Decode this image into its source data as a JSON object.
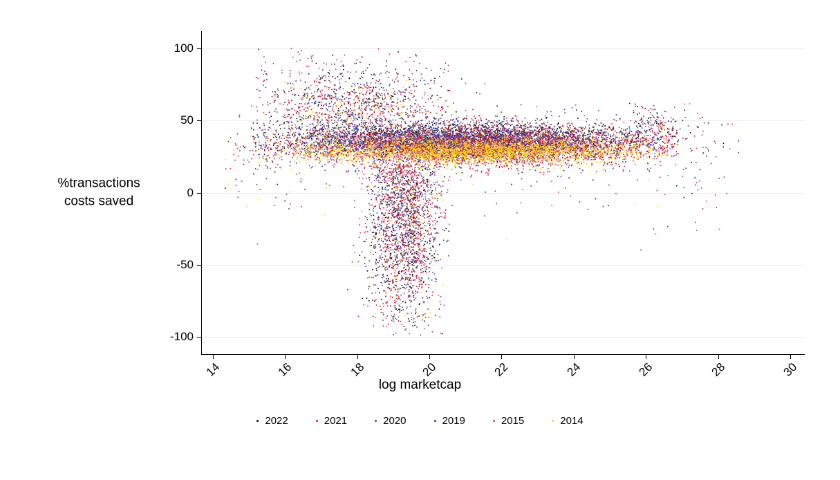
{
  "chart_data": {
    "type": "scatter",
    "title": "",
    "xlabel": "log marketcap",
    "ylabel": "%transactions\ncosts saved",
    "xlim": [
      13.7,
      30.4
    ],
    "ylim": [
      -112,
      112
    ],
    "xticks": [
      14,
      16,
      18,
      20,
      22,
      24,
      26,
      28,
      30
    ],
    "yticks": [
      -100,
      -50,
      0,
      50,
      100
    ],
    "grid": "horizontal-major",
    "grid_color": "#e9edf2",
    "axis_color": "#000000",
    "legend_position": "bottom-center",
    "point_size": 1.6,
    "seed": 1337,
    "series": [
      {
        "name": "2022",
        "color": "#101018"
      },
      {
        "name": "2021",
        "color": "#e0182d"
      },
      {
        "name": "2020",
        "color": "#90353b"
      },
      {
        "name": "2019",
        "color": "#2440c8"
      },
      {
        "name": "2015",
        "color": "#d6356e"
      },
      {
        "name": "2014",
        "color": "#ffd200"
      }
    ],
    "clusters": [
      {
        "series": "2022",
        "n": 2000,
        "x": {
          "d": "g",
          "m": 21.0,
          "s": 2.6,
          "lo": 15.1,
          "hi": 26.9
        },
        "y": {
          "d": "g",
          "m": 37,
          "s": 6,
          "lo": 12,
          "hi": 62
        }
      },
      {
        "series": "2021",
        "n": 2000,
        "x": {
          "d": "g",
          "m": 21.2,
          "s": 2.6,
          "lo": 15.1,
          "hi": 26.9
        },
        "y": {
          "d": "g",
          "m": 33,
          "s": 7,
          "lo": 5,
          "hi": 58
        }
      },
      {
        "series": "2020",
        "n": 1300,
        "x": {
          "d": "g",
          "m": 21.0,
          "s": 2.7,
          "lo": 15.1,
          "hi": 26.9
        },
        "y": {
          "d": "g",
          "m": 35,
          "s": 6,
          "lo": 10,
          "hi": 58
        }
      },
      {
        "series": "2019",
        "n": 1600,
        "x": {
          "d": "g",
          "m": 20.6,
          "s": 2.6,
          "lo": 15.1,
          "hi": 26.9
        },
        "y": {
          "d": "g",
          "m": 35,
          "s": 7,
          "lo": 8,
          "hi": 60
        }
      },
      {
        "series": "2015",
        "n": 1600,
        "x": {
          "d": "g",
          "m": 21.4,
          "s": 2.5,
          "lo": 15.1,
          "hi": 26.9
        },
        "y": {
          "d": "g",
          "m": 31,
          "s": 6,
          "lo": 5,
          "hi": 55
        }
      },
      {
        "series": "2014",
        "n": 2200,
        "x": {
          "d": "g",
          "m": 21.3,
          "s": 2.4,
          "lo": 15.2,
          "hi": 26.6
        },
        "y": {
          "d": "g",
          "m": 29,
          "s": 4.5,
          "lo": 13,
          "hi": 46
        }
      },
      {
        "series": "2022",
        "n": 550,
        "x": {
          "d": "g",
          "m": 19.3,
          "s": 0.5,
          "lo": 17.7,
          "hi": 20.6
        },
        "y": {
          "d": "g",
          "m": -15,
          "s": 38,
          "lo": -100,
          "hi": 20
        }
      },
      {
        "series": "2021",
        "n": 500,
        "x": {
          "d": "g",
          "m": 19.3,
          "s": 0.5,
          "lo": 17.7,
          "hi": 20.6
        },
        "y": {
          "d": "g",
          "m": -15,
          "s": 38,
          "lo": -100,
          "hi": 20
        }
      },
      {
        "series": "2020",
        "n": 280,
        "x": {
          "d": "g",
          "m": 19.3,
          "s": 0.5,
          "lo": 17.7,
          "hi": 20.6
        },
        "y": {
          "d": "g",
          "m": -15,
          "s": 38,
          "lo": -100,
          "hi": 20
        }
      },
      {
        "series": "2019",
        "n": 320,
        "x": {
          "d": "g",
          "m": 19.3,
          "s": 0.55,
          "lo": 17.6,
          "hi": 20.6
        },
        "y": {
          "d": "g",
          "m": -15,
          "s": 38,
          "lo": -100,
          "hi": 20
        }
      },
      {
        "series": "2015",
        "n": 320,
        "x": {
          "d": "g",
          "m": 19.3,
          "s": 0.5,
          "lo": 17.7,
          "hi": 20.6
        },
        "y": {
          "d": "g",
          "m": -15,
          "s": 38,
          "lo": -100,
          "hi": 20
        }
      },
      {
        "series": "2014",
        "n": 70,
        "x": {
          "d": "g",
          "m": 19.3,
          "s": 0.5,
          "lo": 17.8,
          "hi": 20.4
        },
        "y": {
          "d": "g",
          "m": -20,
          "s": 35,
          "lo": -98,
          "hi": 10
        }
      },
      {
        "series": "2022",
        "n": 280,
        "x": {
          "d": "g",
          "m": 17.9,
          "s": 1.4,
          "lo": 15.2,
          "hi": 22.0
        },
        "y": {
          "d": "g",
          "m": 60,
          "s": 16,
          "lo": 42,
          "hi": 100
        }
      },
      {
        "series": "2021",
        "n": 260,
        "x": {
          "d": "g",
          "m": 17.7,
          "s": 1.4,
          "lo": 15.2,
          "hi": 22.0
        },
        "y": {
          "d": "g",
          "m": 62,
          "s": 17,
          "lo": 42,
          "hi": 100
        }
      },
      {
        "series": "2020",
        "n": 140,
        "x": {
          "d": "g",
          "m": 18.0,
          "s": 1.3,
          "lo": 15.2,
          "hi": 22.0
        },
        "y": {
          "d": "g",
          "m": 58,
          "s": 14,
          "lo": 42,
          "hi": 97
        }
      },
      {
        "series": "2019",
        "n": 170,
        "x": {
          "d": "g",
          "m": 17.6,
          "s": 1.4,
          "lo": 15.2,
          "hi": 22.0
        },
        "y": {
          "d": "g",
          "m": 58,
          "s": 15,
          "lo": 42,
          "hi": 98
        }
      },
      {
        "series": "2015",
        "n": 160,
        "x": {
          "d": "g",
          "m": 18.1,
          "s": 1.4,
          "lo": 15.2,
          "hi": 22.0
        },
        "y": {
          "d": "g",
          "m": 60,
          "s": 15,
          "lo": 42,
          "hi": 98
        }
      },
      {
        "series": "2014",
        "n": 90,
        "x": {
          "d": "g",
          "m": 17.8,
          "s": 1.2,
          "lo": 15.2,
          "hi": 21.0
        },
        "y": {
          "d": "g",
          "m": 55,
          "s": 11,
          "lo": 42,
          "hi": 90
        }
      },
      {
        "series": "2022",
        "n": 70,
        "x": {
          "d": "u",
          "lo": 14.6,
          "hi": 28.3
        },
        "y": {
          "d": "g",
          "m": 25,
          "s": 22,
          "lo": -45,
          "hi": 62
        }
      },
      {
        "series": "2021",
        "n": 70,
        "x": {
          "d": "u",
          "lo": 14.6,
          "hi": 28.3
        },
        "y": {
          "d": "g",
          "m": 25,
          "s": 22,
          "lo": -45,
          "hi": 62
        }
      },
      {
        "series": "2020",
        "n": 70,
        "x": {
          "d": "u",
          "lo": 14.6,
          "hi": 28.3
        },
        "y": {
          "d": "g",
          "m": 25,
          "s": 22,
          "lo": -45,
          "hi": 62
        }
      },
      {
        "series": "2019",
        "n": 70,
        "x": {
          "d": "u",
          "lo": 14.6,
          "hi": 28.3
        },
        "y": {
          "d": "g",
          "m": 25,
          "s": 22,
          "lo": -45,
          "hi": 62
        }
      },
      {
        "series": "2015",
        "n": 70,
        "x": {
          "d": "u",
          "lo": 14.6,
          "hi": 28.3
        },
        "y": {
          "d": "g",
          "m": 25,
          "s": 22,
          "lo": -45,
          "hi": 62
        }
      },
      {
        "series": "2014",
        "n": 50,
        "x": {
          "d": "u",
          "lo": 14.4,
          "hi": 27.0
        },
        "y": {
          "d": "g",
          "m": 25,
          "s": 20,
          "lo": -40,
          "hi": 60
        }
      },
      {
        "series": "2022",
        "n": 40,
        "x": {
          "d": "g",
          "m": 26.15,
          "s": 0.35,
          "lo": 25.6,
          "hi": 26.9
        },
        "y": {
          "d": "g",
          "m": 46,
          "s": 9,
          "lo": 25,
          "hi": 62
        }
      },
      {
        "series": "2021",
        "n": 40,
        "x": {
          "d": "g",
          "m": 26.15,
          "s": 0.35,
          "lo": 25.6,
          "hi": 26.9
        },
        "y": {
          "d": "g",
          "m": 46,
          "s": 9,
          "lo": 25,
          "hi": 62
        }
      },
      {
        "series": "2019",
        "n": 25,
        "x": {
          "d": "g",
          "m": 26.15,
          "s": 0.35,
          "lo": 25.6,
          "hi": 26.9
        },
        "y": {
          "d": "g",
          "m": 46,
          "s": 9,
          "lo": 25,
          "hi": 62
        }
      },
      {
        "series": "2015",
        "n": 20,
        "x": {
          "d": "g",
          "m": 26.15,
          "s": 0.35,
          "lo": 25.6,
          "hi": 26.9
        },
        "y": {
          "d": "g",
          "m": 44,
          "s": 9,
          "lo": 25,
          "hi": 60
        }
      },
      {
        "series": "2022",
        "n": 12,
        "x": {
          "d": "u",
          "lo": 26.8,
          "hi": 28.6
        },
        "y": {
          "d": "g",
          "m": 35,
          "s": 12,
          "lo": 8,
          "hi": 62
        }
      },
      {
        "series": "2021",
        "n": 10,
        "x": {
          "d": "u",
          "lo": 26.8,
          "hi": 28.6
        },
        "y": {
          "d": "g",
          "m": 35,
          "s": 12,
          "lo": 8,
          "hi": 62
        }
      },
      {
        "series": "2019",
        "n": 8,
        "x": {
          "d": "u",
          "lo": 26.8,
          "hi": 28.6
        },
        "y": {
          "d": "g",
          "m": 35,
          "s": 12,
          "lo": 8,
          "hi": 62
        }
      },
      {
        "series": "2022",
        "n": 6,
        "x": {
          "d": "u",
          "lo": 14.3,
          "hi": 15.2
        },
        "y": {
          "d": "g",
          "m": 25,
          "s": 15,
          "lo": -40,
          "hi": 55
        }
      },
      {
        "series": "2021",
        "n": 8,
        "x": {
          "d": "u",
          "lo": 14.3,
          "hi": 15.2
        },
        "y": {
          "d": "g",
          "m": 25,
          "s": 15,
          "lo": -40,
          "hi": 55
        }
      },
      {
        "series": "2019",
        "n": 6,
        "x": {
          "d": "u",
          "lo": 14.3,
          "hi": 15.2
        },
        "y": {
          "d": "g",
          "m": 25,
          "s": 15,
          "lo": -40,
          "hi": 55
        }
      },
      {
        "series": "2014",
        "n": 6,
        "x": {
          "d": "u",
          "lo": 14.3,
          "hi": 15.2
        },
        "y": {
          "d": "g",
          "m": 20,
          "s": 18,
          "lo": -40,
          "hi": 50
        }
      }
    ]
  }
}
